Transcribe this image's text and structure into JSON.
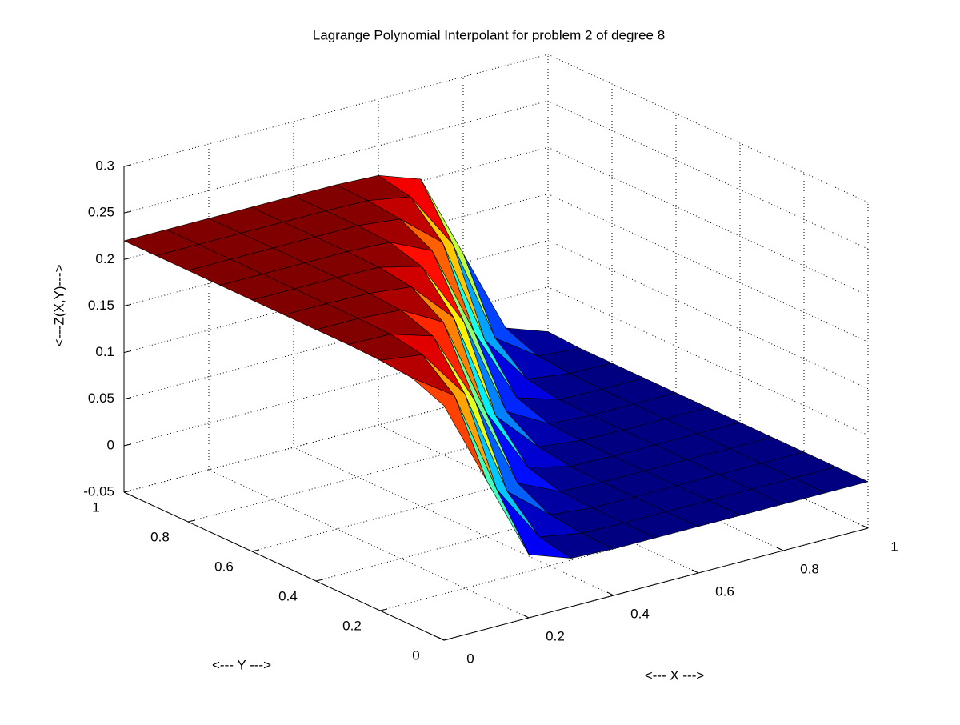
{
  "chart_data": {
    "type": "surface",
    "title": "Lagrange Polynomial Interpolant for problem 2 of degree 8",
    "xlabel": "<--- X --->",
    "ylabel": "<--- Y --->",
    "zlabel": "<---Z(X,Y)--->",
    "x": [
      0,
      0.1,
      0.2,
      0.3,
      0.4,
      0.5,
      0.6,
      0.7,
      0.8,
      0.9,
      1
    ],
    "y": [
      0,
      0.1,
      0.2,
      0.3,
      0.4,
      0.5,
      0.6,
      0.7,
      0.8,
      0.9,
      1
    ],
    "z": [
      [
        0.202,
        0.11,
        0.018,
        0.002,
        0,
        0,
        0,
        0,
        0,
        0,
        0
      ],
      [
        0.216,
        0.185,
        0.072,
        0.009,
        0.001,
        0,
        0,
        0,
        0,
        0,
        0
      ],
      [
        0.219,
        0.213,
        0.159,
        0.042,
        0.005,
        0,
        0,
        0,
        0,
        0,
        0
      ],
      [
        0.22,
        0.219,
        0.205,
        0.123,
        0.023,
        0.002,
        0,
        0,
        0,
        0,
        0
      ],
      [
        0.22,
        0.22,
        0.217,
        0.192,
        0.084,
        0.012,
        0.001,
        0,
        0,
        0,
        0
      ],
      [
        0.22,
        0.22,
        0.219,
        0.214,
        0.169,
        0.051,
        0.006,
        0.001,
        0,
        0,
        0
      ],
      [
        0.22,
        0.22,
        0.22,
        0.219,
        0.208,
        0.136,
        0.028,
        0.003,
        0,
        0,
        0
      ],
      [
        0.22,
        0.22,
        0.22,
        0.22,
        0.218,
        0.197,
        0.097,
        0.015,
        0.001,
        0,
        0
      ],
      [
        0.22,
        0.22,
        0.22,
        0.22,
        0.22,
        0.215,
        0.178,
        0.061,
        0.007,
        0.001,
        0
      ],
      [
        0.22,
        0.22,
        0.22,
        0.22,
        0.22,
        0.219,
        0.211,
        0.148,
        0.035,
        0.004,
        0
      ],
      [
        0.22,
        0.22,
        0.22,
        0.22,
        0.22,
        0.22,
        0.218,
        0.202,
        0.11,
        0.018,
        0.002
      ]
    ],
    "xlim": [
      0,
      1
    ],
    "ylim": [
      0,
      1
    ],
    "zlim": [
      -0.05,
      0.3
    ],
    "xticks": [
      0,
      0.2,
      0.4,
      0.6,
      0.8,
      1
    ],
    "yticks": [
      0,
      0.2,
      0.4,
      0.6,
      0.8,
      1
    ],
    "zticks": [
      -0.05,
      0,
      0.05,
      0.1,
      0.15,
      0.2,
      0.25,
      0.3
    ],
    "grid": true,
    "colormap": "jet",
    "edgecolor": "#000000"
  }
}
